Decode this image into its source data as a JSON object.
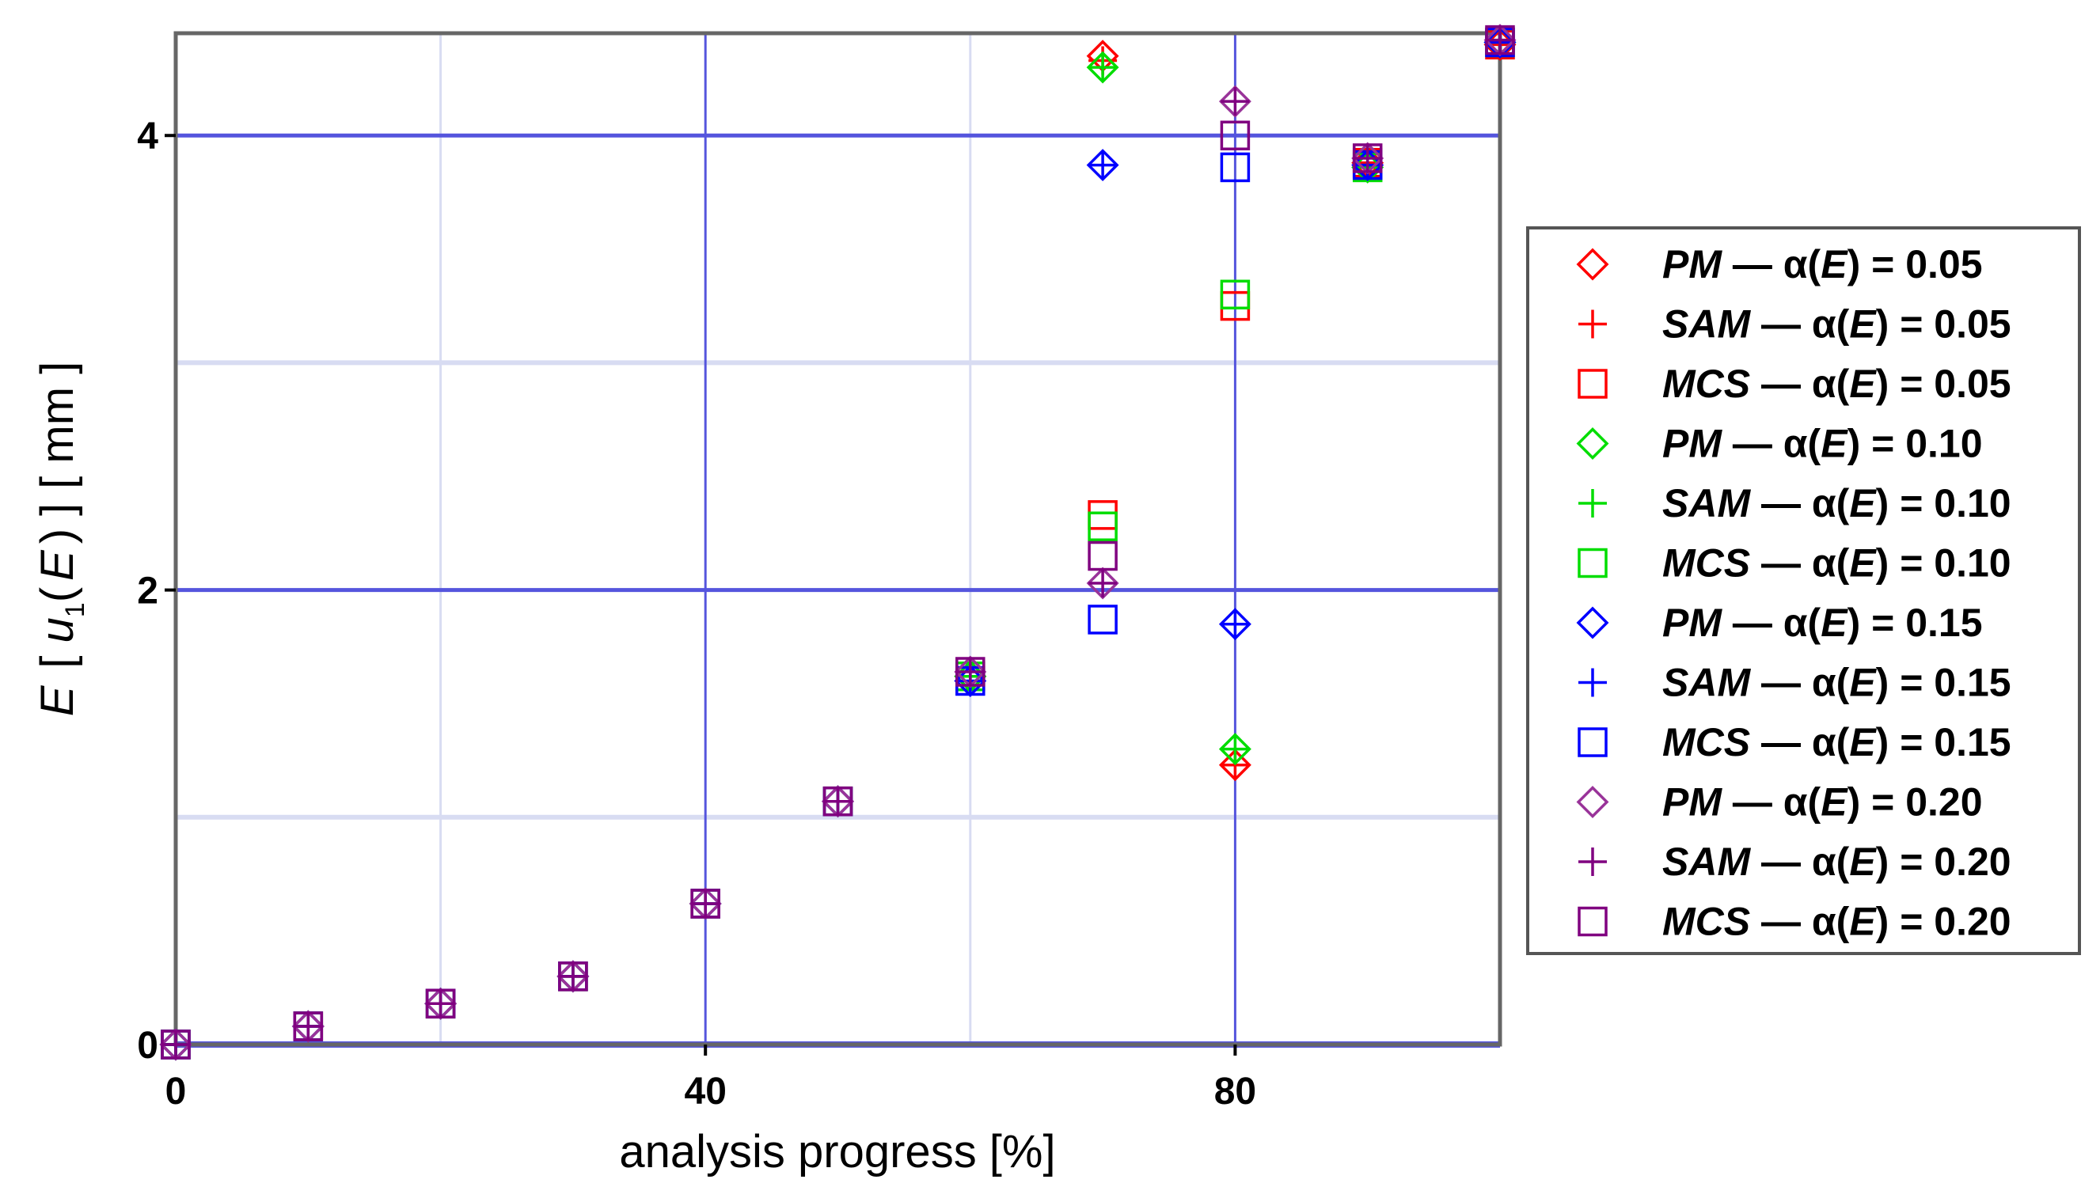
{
  "chart_data": {
    "type": "scatter",
    "title": "",
    "xlabel": "analysis progress [%]",
    "ylabel": "E [ u1(E) ] [ mm ]",
    "ylabel_parts": {
      "e": "E",
      "lb": "[",
      "u": "u",
      "sub": "1",
      "lp": "(",
      "e2": "E",
      "rp": ")",
      "rb": "]",
      "unit": "[ mm ]"
    },
    "xlim": [
      0,
      100
    ],
    "ylim": [
      0,
      4.45
    ],
    "x_ticks": [
      0,
      40,
      80
    ],
    "y_ticks": [
      0,
      2,
      4
    ],
    "x_tick_labels": [
      "0",
      "40",
      "80"
    ],
    "y_tick_labels": [
      "0",
      "2",
      "4"
    ],
    "x_major_grid": [
      40,
      80
    ],
    "x_minor_grid": [
      20,
      60
    ],
    "y_major_grid": [
      2,
      4
    ],
    "y_minor_grid": [
      1,
      3
    ],
    "grid": true,
    "legend_position": "right",
    "x": [
      0,
      10,
      20,
      30,
      40,
      50,
      60,
      70,
      80,
      90,
      100
    ],
    "series": [
      {
        "name": "PM — α(E) = 0.05",
        "label": {
          "m": "PM",
          "a": "α",
          "e": "E",
          "v": "0.05"
        },
        "marker": "diamond",
        "color": "#ff0000",
        "values": [
          0.0,
          0.08,
          0.18,
          0.3,
          0.62,
          1.07,
          1.62,
          4.35,
          1.23,
          3.88,
          4.4
        ]
      },
      {
        "name": "SAM — α(E) = 0.05",
        "label": {
          "m": "SAM",
          "a": "α",
          "e": "E",
          "v": "0.05"
        },
        "marker": "plus",
        "color": "#ff0000",
        "values": [
          0.0,
          0.08,
          0.18,
          0.3,
          0.62,
          1.07,
          1.62,
          4.33,
          1.23,
          3.88,
          4.4
        ]
      },
      {
        "name": "MCS — α(E) = 0.05",
        "label": {
          "m": "MCS",
          "a": "α",
          "e": "E",
          "v": "0.05"
        },
        "marker": "square",
        "color": "#ff0000",
        "values": [
          0.0,
          0.08,
          0.18,
          0.3,
          0.62,
          1.07,
          1.62,
          2.33,
          3.25,
          3.88,
          4.4
        ]
      },
      {
        "name": "PM — α(E) = 0.10",
        "label": {
          "m": "PM",
          "a": "α",
          "e": "E",
          "v": "0.10"
        },
        "marker": "diamond",
        "color": "#00dd00",
        "values": [
          0.0,
          0.08,
          0.18,
          0.3,
          0.62,
          1.07,
          1.62,
          4.3,
          1.3,
          3.86,
          4.41
        ]
      },
      {
        "name": "SAM — α(E) = 0.10",
        "label": {
          "m": "SAM",
          "a": "α",
          "e": "E",
          "v": "0.10"
        },
        "marker": "plus",
        "color": "#00dd00",
        "values": [
          0.0,
          0.08,
          0.18,
          0.3,
          0.62,
          1.07,
          1.62,
          4.3,
          1.3,
          3.86,
          4.41
        ]
      },
      {
        "name": "MCS — α(E) = 0.10",
        "label": {
          "m": "MCS",
          "a": "α",
          "e": "E",
          "v": "0.10"
        },
        "marker": "square",
        "color": "#00dd00",
        "values": [
          0.0,
          0.08,
          0.18,
          0.3,
          0.62,
          1.07,
          1.62,
          2.28,
          3.3,
          3.86,
          4.41
        ]
      },
      {
        "name": "PM — α(E) = 0.15",
        "label": {
          "m": "PM",
          "a": "α",
          "e": "E",
          "v": "0.15"
        },
        "marker": "diamond",
        "color": "#0000ff",
        "values": [
          0.0,
          0.08,
          0.18,
          0.3,
          0.62,
          1.07,
          1.6,
          3.87,
          1.85,
          3.87,
          4.41
        ]
      },
      {
        "name": "SAM — α(E) = 0.15",
        "label": {
          "m": "SAM",
          "a": "α",
          "e": "E",
          "v": "0.15"
        },
        "marker": "plus",
        "color": "#0000ff",
        "values": [
          0.0,
          0.08,
          0.18,
          0.3,
          0.62,
          1.07,
          1.6,
          3.87,
          1.85,
          3.87,
          4.41
        ]
      },
      {
        "name": "MCS — α(E) = 0.15",
        "label": {
          "m": "MCS",
          "a": "α",
          "e": "E",
          "v": "0.15"
        },
        "marker": "square",
        "color": "#0000ff",
        "values": [
          0.0,
          0.08,
          0.18,
          0.3,
          0.62,
          1.07,
          1.6,
          1.87,
          3.86,
          3.87,
          4.41
        ]
      },
      {
        "name": "PM — α(E) = 0.20",
        "label": {
          "m": "PM",
          "a": "α",
          "e": "E",
          "v": "0.20"
        },
        "marker": "diamond",
        "color": "#993399",
        "values": [
          0.0,
          0.08,
          0.18,
          0.3,
          0.62,
          1.07,
          1.64,
          2.03,
          4.15,
          3.9,
          4.42
        ]
      },
      {
        "name": "SAM — α(E) = 0.20",
        "label": {
          "m": "SAM",
          "a": "α",
          "e": "E",
          "v": "0.20"
        },
        "marker": "plus",
        "color": "#800080",
        "values": [
          0.0,
          0.08,
          0.18,
          0.3,
          0.62,
          1.07,
          1.64,
          2.03,
          4.15,
          3.9,
          4.42
        ]
      },
      {
        "name": "MCS — α(E) = 0.20",
        "label": {
          "m": "MCS",
          "a": "α",
          "e": "E",
          "v": "0.20"
        },
        "marker": "square",
        "color": "#800080",
        "values": [
          0.0,
          0.08,
          0.18,
          0.3,
          0.62,
          1.07,
          1.64,
          2.15,
          4.0,
          3.9,
          4.42
        ]
      }
    ],
    "colors": {
      "major_grid": "#5555dd",
      "minor_grid": "#d8dcf2",
      "axis": "#666666",
      "legend_border": "#555555"
    }
  }
}
